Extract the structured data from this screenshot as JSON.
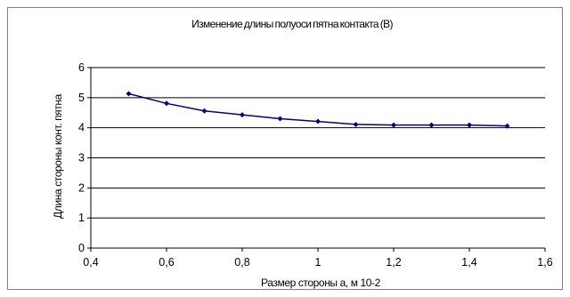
{
  "chart_data": {
    "type": "line",
    "title": "Изменение длины полуоси пятна контакта (В)",
    "xlabel": "Размер стороны а, м 10-2",
    "ylabel": "Длина стороны конт. пятна",
    "xlim": [
      0.4,
      1.6
    ],
    "ylim": [
      0,
      6
    ],
    "xticks": [
      0.4,
      0.6,
      0.8,
      1,
      1.2,
      1.4,
      1.6
    ],
    "xtick_labels": [
      "0,4",
      "0,6",
      "0,8",
      "1",
      "1,2",
      "1,4",
      "1,6"
    ],
    "yticks": [
      0,
      1,
      2,
      3,
      4,
      5,
      6
    ],
    "ytick_labels": [
      "0",
      "1",
      "2",
      "3",
      "4",
      "5",
      "6"
    ],
    "grid": "horizontal",
    "series": [
      {
        "x": [
          0.5,
          0.6,
          0.7,
          0.8,
          0.9,
          1.0,
          1.1,
          1.2,
          1.3,
          1.4,
          1.5
        ],
        "y": [
          5.13,
          4.81,
          4.56,
          4.43,
          4.3,
          4.21,
          4.11,
          4.09,
          4.09,
          4.09,
          4.06
        ]
      }
    ],
    "colors": {
      "line": "#000080",
      "grid": "#000000",
      "axis": "#000000"
    }
  }
}
